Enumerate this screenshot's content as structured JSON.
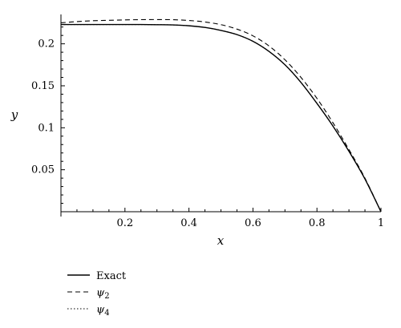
{
  "chart_data": {
    "type": "line",
    "xlabel": "x",
    "ylabel": "y",
    "xlim": [
      0,
      1
    ],
    "ylim": [
      0,
      0.235
    ],
    "xticks": [
      0.2,
      0.4,
      0.6,
      0.8,
      1
    ],
    "xtick_labels": [
      "0.2",
      "0.4",
      "0.6",
      "0.8",
      "1"
    ],
    "yticks": [
      0.05,
      0.1,
      0.15,
      0.2
    ],
    "ytick_labels": [
      "0.05",
      "0.1",
      "0.15",
      "0.2"
    ],
    "legend_placement": "bottom-left",
    "series": [
      {
        "name": "Exact",
        "style": "solid",
        "x": [
          0,
          0.05,
          0.1,
          0.15,
          0.2,
          0.25,
          0.3,
          0.35,
          0.4,
          0.45,
          0.5,
          0.55,
          0.6,
          0.65,
          0.7,
          0.75,
          0.8,
          0.85,
          0.9,
          0.95,
          1.0
        ],
        "y": [
          0.223,
          0.223,
          0.223,
          0.223,
          0.223,
          0.223,
          0.2228,
          0.2225,
          0.2215,
          0.2195,
          0.216,
          0.211,
          0.203,
          0.191,
          0.175,
          0.154,
          0.129,
          0.102,
          0.072,
          0.039,
          0.0
        ]
      },
      {
        "name": "ψ2",
        "name_base": "ψ",
        "name_sub": "2",
        "style": "dashed",
        "x": [
          0,
          0.05,
          0.1,
          0.15,
          0.2,
          0.25,
          0.3,
          0.35,
          0.4,
          0.45,
          0.5,
          0.55,
          0.6,
          0.65,
          0.7,
          0.75,
          0.8,
          0.85,
          0.9,
          0.95,
          1.0
        ],
        "y": [
          0.225,
          0.2265,
          0.2275,
          0.228,
          0.2285,
          0.2288,
          0.2289,
          0.2287,
          0.2278,
          0.226,
          0.2228,
          0.2175,
          0.2095,
          0.1975,
          0.181,
          0.16,
          0.135,
          0.106,
          0.074,
          0.04,
          0.0
        ]
      },
      {
        "name": "ψ4",
        "name_base": "ψ",
        "name_sub": "4",
        "style": "dotted",
        "x": [
          0,
          0.05,
          0.1,
          0.15,
          0.2,
          0.25,
          0.3,
          0.35,
          0.4,
          0.45,
          0.5,
          0.55,
          0.6,
          0.65,
          0.7,
          0.75,
          0.8,
          0.85,
          0.9,
          0.95,
          1.0
        ],
        "y": [
          0.223,
          0.223,
          0.223,
          0.223,
          0.223,
          0.223,
          0.2228,
          0.2225,
          0.2215,
          0.2195,
          0.216,
          0.211,
          0.203,
          0.191,
          0.175,
          0.154,
          0.129,
          0.102,
          0.072,
          0.039,
          0.0
        ]
      }
    ]
  }
}
